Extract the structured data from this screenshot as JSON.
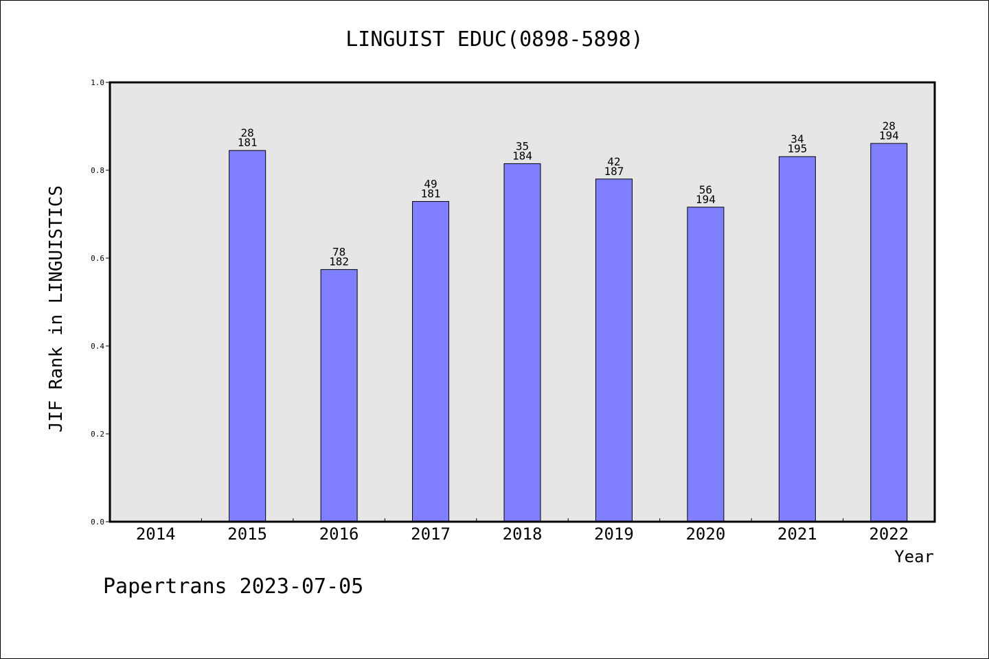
{
  "footer": "Papertrans 2023-07-05",
  "chart_data": {
    "type": "bar",
    "title": "LINGUIST EDUC(0898-5898)",
    "xlabel": "Year",
    "ylabel": "JIF Rank in LINGUISTICS",
    "ylim": [
      0,
      1.0
    ],
    "yticks": [
      "0.0",
      "0.2",
      "0.4",
      "0.6",
      "0.8",
      "1.0"
    ],
    "grid": false,
    "categories": [
      "2014",
      "2015",
      "2016",
      "2017",
      "2018",
      "2019",
      "2020",
      "2021",
      "2022"
    ],
    "values": [
      null,
      0.845,
      0.574,
      0.729,
      0.815,
      0.78,
      0.716,
      0.831,
      0.861
    ],
    "rank_labels": [
      null,
      {
        "rank": "28",
        "total": "181"
      },
      {
        "rank": "78",
        "total": "182"
      },
      {
        "rank": "49",
        "total": "181"
      },
      {
        "rank": "35",
        "total": "184"
      },
      {
        "rank": "42",
        "total": "187"
      },
      {
        "rank": "56",
        "total": "194"
      },
      {
        "rank": "34",
        "total": "195"
      },
      {
        "rank": "28",
        "total": "194"
      }
    ],
    "colors": {
      "bar": "#8080ff",
      "plot_background": "#e6e6e6"
    }
  }
}
